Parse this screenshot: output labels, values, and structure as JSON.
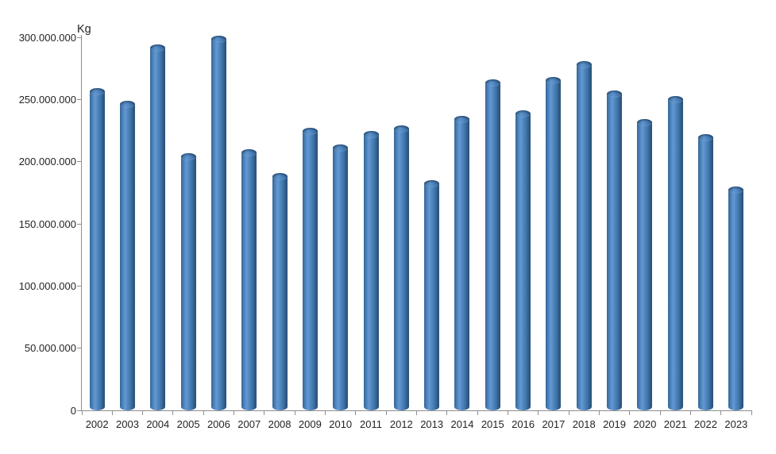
{
  "chart_data": {
    "type": "bar",
    "subtype": "cylinder-3d",
    "title": "",
    "xlabel": "",
    "ylabel": "Kg",
    "legend": "none",
    "grid": "off",
    "ylim": [
      0,
      300000000
    ],
    "categories": [
      "2002",
      "2003",
      "2004",
      "2005",
      "2006",
      "2007",
      "2008",
      "2009",
      "2010",
      "2011",
      "2012",
      "2013",
      "2014",
      "2015",
      "2016",
      "2017",
      "2018",
      "2019",
      "2020",
      "2021",
      "2022",
      "2023"
    ],
    "values": [
      259000000,
      249000000,
      294000000,
      207000000,
      301000000,
      210000000,
      191000000,
      227000000,
      214000000,
      225000000,
      229000000,
      185000000,
      237000000,
      266000000,
      241000000,
      268000000,
      281000000,
      257000000,
      234000000,
      253000000,
      222000000,
      180000000
    ],
    "y_ticks": [
      {
        "value": 300000000,
        "label": "300.000.000"
      },
      {
        "value": 250000000,
        "label": "250.000.000"
      },
      {
        "value": 200000000,
        "label": "200.000.000"
      },
      {
        "value": 150000000,
        "label": "150.000.000"
      },
      {
        "value": 100000000,
        "label": "100.000.000"
      },
      {
        "value": 50000000,
        "label": "50.000.000"
      },
      {
        "value": 0,
        "label": "0"
      }
    ],
    "colors": {
      "bar_main": "#4f86c0",
      "bar_highlight": "#6598d1",
      "bar_shadow": "#2a527b",
      "axis": "#8e8e8e",
      "text": "#242424",
      "background": "#ffffff"
    }
  }
}
